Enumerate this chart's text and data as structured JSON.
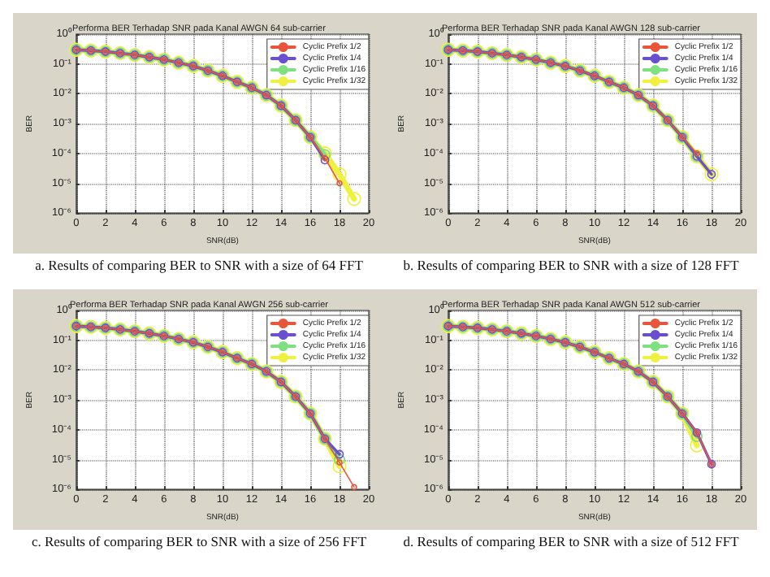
{
  "chart_data": [
    {
      "type": "line",
      "title": "Performa BER Terhadap SNR pada Kanal AWGN 64 sub-carrier",
      "xlabel": "SNR(dB)",
      "ylabel": "BER",
      "annotations": [
        "a. Results of comparing BER to SNR with a size of 64 FFT"
      ],
      "log": "y",
      "grid": true,
      "legend": "top right",
      "marker": "circle",
      "xlim": [
        0,
        20
      ],
      "xticks": [
        0,
        2,
        4,
        6,
        8,
        10,
        12,
        14,
        16,
        18,
        20
      ],
      "ylim": [
        1e-06,
        1
      ],
      "yticks": [
        {
          "value": 1,
          "label": "10⁰"
        },
        {
          "value": 0.1,
          "label": "10⁻¹"
        },
        {
          "value": 0.01,
          "label": "10⁻²"
        },
        {
          "value": 0.001,
          "label": "10⁻³"
        },
        {
          "value": 0.0001,
          "label": "10⁻⁴"
        },
        {
          "value": 1e-05,
          "label": "10⁻⁵"
        },
        {
          "value": 1e-06,
          "label": "10⁻⁶"
        }
      ],
      "series": [
        {
          "name": "Cyclic Prefix 1/2",
          "color": "#e8553a",
          "x": [
            0,
            1,
            2,
            3,
            4,
            5,
            6,
            7,
            8,
            9,
            10,
            11,
            12,
            13,
            14,
            15,
            16,
            17,
            18
          ],
          "values": [
            0.3,
            0.28,
            0.26,
            0.23,
            0.2,
            0.17,
            0.14,
            0.11,
            0.085,
            0.06,
            0.04,
            0.025,
            0.016,
            0.009,
            0.004,
            0.0013,
            0.00035,
            7e-05,
            1e-05
          ]
        },
        {
          "name": "Cyclic Prefix 1/4",
          "color": "#6a4fd0",
          "x": [
            0,
            1,
            2,
            3,
            4,
            5,
            6,
            7,
            8,
            9,
            10,
            11,
            12,
            13,
            14,
            15,
            16,
            17
          ],
          "values": [
            0.3,
            0.28,
            0.26,
            0.23,
            0.2,
            0.17,
            0.14,
            0.11,
            0.085,
            0.06,
            0.04,
            0.025,
            0.016,
            0.009,
            0.004,
            0.0013,
            0.00035,
            6e-05
          ]
        },
        {
          "name": "Cyclic Prefix 1/16",
          "color": "#7fe07f",
          "x": [
            0,
            1,
            2,
            3,
            4,
            5,
            6,
            7,
            8,
            9,
            10,
            11,
            12,
            13,
            14,
            15,
            16,
            17
          ],
          "values": [
            0.3,
            0.28,
            0.26,
            0.23,
            0.2,
            0.17,
            0.14,
            0.11,
            0.085,
            0.06,
            0.04,
            0.025,
            0.016,
            0.009,
            0.004,
            0.0013,
            0.00035,
            9e-05
          ]
        },
        {
          "name": "Cyclic Prefix 1/32",
          "color": "#f0f040",
          "x": [
            0,
            1,
            2,
            3,
            4,
            5,
            6,
            7,
            8,
            9,
            10,
            11,
            12,
            13,
            14,
            15,
            16,
            17,
            18,
            19
          ],
          "values": [
            0.3,
            0.28,
            0.26,
            0.23,
            0.2,
            0.17,
            0.14,
            0.11,
            0.085,
            0.06,
            0.04,
            0.025,
            0.016,
            0.009,
            0.004,
            0.0013,
            0.00035,
            0.0001,
            2e-05,
            3e-06
          ]
        }
      ]
    },
    {
      "type": "line",
      "title": "Performa BER Terhadap SNR pada Kanal AWGN 128 sub-carrier",
      "xlabel": "SNR(dB)",
      "ylabel": "BER",
      "annotations": [
        "b. Results of comparing BER to SNR with a size of 128 FFT"
      ],
      "log": "y",
      "grid": true,
      "legend": "top right",
      "marker": "circle",
      "xlim": [
        0,
        20
      ],
      "xticks": [
        0,
        2,
        4,
        6,
        8,
        10,
        12,
        14,
        16,
        18,
        20
      ],
      "ylim": [
        1e-06,
        1
      ],
      "yticks": [
        {
          "value": 1,
          "label": "10⁰"
        },
        {
          "value": 0.1,
          "label": "10⁻¹"
        },
        {
          "value": 0.01,
          "label": "10⁻²"
        },
        {
          "value": 0.001,
          "label": "10⁻³"
        },
        {
          "value": 0.0001,
          "label": "10⁻⁴"
        },
        {
          "value": 1e-05,
          "label": "10⁻⁵"
        },
        {
          "value": 1e-06,
          "label": "10⁻⁶"
        }
      ],
      "series": [
        {
          "name": "Cyclic Prefix 1/2",
          "color": "#e8553a",
          "x": [
            0,
            1,
            2,
            3,
            4,
            5,
            6,
            7,
            8,
            9,
            10,
            11,
            12,
            13,
            14,
            15,
            16,
            17
          ],
          "values": [
            0.3,
            0.28,
            0.26,
            0.23,
            0.2,
            0.17,
            0.14,
            0.11,
            0.085,
            0.06,
            0.04,
            0.025,
            0.016,
            0.009,
            0.004,
            0.0013,
            0.00035,
            0.0001
          ]
        },
        {
          "name": "Cyclic Prefix 1/4",
          "color": "#6a4fd0",
          "x": [
            0,
            1,
            2,
            3,
            4,
            5,
            6,
            7,
            8,
            9,
            10,
            11,
            12,
            13,
            14,
            15,
            16,
            17,
            18
          ],
          "values": [
            0.3,
            0.28,
            0.26,
            0.23,
            0.2,
            0.17,
            0.14,
            0.11,
            0.085,
            0.06,
            0.04,
            0.025,
            0.016,
            0.009,
            0.004,
            0.0013,
            0.00035,
            8e-05,
            2e-05
          ]
        },
        {
          "name": "Cyclic Prefix 1/16",
          "color": "#7fe07f",
          "x": [
            0,
            1,
            2,
            3,
            4,
            5,
            6,
            7,
            8,
            9,
            10,
            11,
            12,
            13,
            14,
            15,
            16,
            17
          ],
          "values": [
            0.3,
            0.28,
            0.26,
            0.23,
            0.2,
            0.17,
            0.14,
            0.11,
            0.085,
            0.06,
            0.04,
            0.025,
            0.016,
            0.009,
            0.004,
            0.0013,
            0.00035,
            8e-05
          ]
        },
        {
          "name": "Cyclic Prefix 1/32",
          "color": "#f0f040",
          "x": [
            0,
            1,
            2,
            3,
            4,
            5,
            6,
            7,
            8,
            9,
            10,
            11,
            12,
            13,
            14,
            15,
            16,
            17,
            18
          ],
          "values": [
            0.3,
            0.28,
            0.26,
            0.23,
            0.2,
            0.17,
            0.14,
            0.11,
            0.085,
            0.06,
            0.04,
            0.025,
            0.016,
            0.009,
            0.004,
            0.0013,
            0.00035,
            8e-05,
            2e-05
          ]
        }
      ]
    },
    {
      "type": "line",
      "title": "Performa BER Terhadap SNR pada Kanal AWGN 256 sub-carrier",
      "xlabel": "SNR(dB)",
      "ylabel": "BER",
      "annotations": [
        "c. Results of comparing BER to SNR with a size of 256 FFT"
      ],
      "log": "y",
      "grid": true,
      "legend": "top right",
      "marker": "circle",
      "xlim": [
        0,
        20
      ],
      "xticks": [
        0,
        2,
        4,
        6,
        8,
        10,
        12,
        14,
        16,
        18,
        20
      ],
      "ylim": [
        1e-06,
        1
      ],
      "yticks": [
        {
          "value": 1,
          "label": "10⁰"
        },
        {
          "value": 0.1,
          "label": "10⁻¹"
        },
        {
          "value": 0.01,
          "label": "10⁻²"
        },
        {
          "value": 0.001,
          "label": "10⁻³"
        },
        {
          "value": 0.0001,
          "label": "10⁻⁴"
        },
        {
          "value": 1e-05,
          "label": "10⁻⁵"
        },
        {
          "value": 1e-06,
          "label": "10⁻⁶"
        }
      ],
      "series": [
        {
          "name": "Cyclic Prefix 1/2",
          "color": "#e8553a",
          "x": [
            0,
            1,
            2,
            3,
            4,
            5,
            6,
            7,
            8,
            9,
            10,
            11,
            12,
            13,
            14,
            15,
            16,
            17,
            18,
            19
          ],
          "values": [
            0.3,
            0.28,
            0.26,
            0.23,
            0.2,
            0.17,
            0.14,
            0.11,
            0.085,
            0.06,
            0.04,
            0.025,
            0.016,
            0.009,
            0.004,
            0.0013,
            0.00035,
            5e-05,
            8e-06,
            1.2e-06
          ]
        },
        {
          "name": "Cyclic Prefix 1/4",
          "color": "#6a4fd0",
          "x": [
            0,
            1,
            2,
            3,
            4,
            5,
            6,
            7,
            8,
            9,
            10,
            11,
            12,
            13,
            14,
            15,
            16,
            17,
            18
          ],
          "values": [
            0.3,
            0.28,
            0.26,
            0.23,
            0.2,
            0.17,
            0.14,
            0.11,
            0.085,
            0.06,
            0.04,
            0.025,
            0.016,
            0.009,
            0.004,
            0.0013,
            0.00035,
            5e-05,
            1.5e-05
          ]
        },
        {
          "name": "Cyclic Prefix 1/16",
          "color": "#7fe07f",
          "x": [
            0,
            1,
            2,
            3,
            4,
            5,
            6,
            7,
            8,
            9,
            10,
            11,
            12,
            13,
            14,
            15,
            16,
            17,
            18
          ],
          "values": [
            0.3,
            0.28,
            0.26,
            0.23,
            0.2,
            0.17,
            0.14,
            0.11,
            0.085,
            0.06,
            0.04,
            0.025,
            0.016,
            0.009,
            0.004,
            0.0013,
            0.00035,
            5e-05,
            1e-05
          ]
        },
        {
          "name": "Cyclic Prefix 1/32",
          "color": "#f0f040",
          "x": [
            0,
            1,
            2,
            3,
            4,
            5,
            6,
            7,
            8,
            9,
            10,
            11,
            12,
            13,
            14,
            15,
            16,
            17,
            18
          ],
          "values": [
            0.3,
            0.28,
            0.26,
            0.23,
            0.2,
            0.17,
            0.14,
            0.11,
            0.085,
            0.06,
            0.04,
            0.025,
            0.016,
            0.009,
            0.004,
            0.0013,
            0.00035,
            5e-05,
            6e-06
          ]
        }
      ]
    },
    {
      "type": "line",
      "title": "Performa BER Terhadap SNR pada Kanal AWGN 512 sub-carrier",
      "xlabel": "SNR(dB)",
      "ylabel": "BER",
      "annotations": [
        "d. Results of comparing BER to SNR with a size of 512 FFT"
      ],
      "log": "y",
      "grid": true,
      "legend": "top right",
      "marker": "circle",
      "xlim": [
        0,
        20
      ],
      "xticks": [
        0,
        2,
        4,
        6,
        8,
        10,
        12,
        14,
        16,
        18,
        20
      ],
      "ylim": [
        1e-06,
        1
      ],
      "yticks": [
        {
          "value": 1,
          "label": "10⁰"
        },
        {
          "value": 0.1,
          "label": "10⁻¹"
        },
        {
          "value": 0.01,
          "label": "10⁻²"
        },
        {
          "value": 0.001,
          "label": "10⁻³"
        },
        {
          "value": 0.0001,
          "label": "10⁻⁴"
        },
        {
          "value": 1e-05,
          "label": "10⁻⁵"
        },
        {
          "value": 1e-06,
          "label": "10⁻⁶"
        }
      ],
      "series": [
        {
          "name": "Cyclic Prefix 1/2",
          "color": "#e8553a",
          "x": [
            0,
            1,
            2,
            3,
            4,
            5,
            6,
            7,
            8,
            9,
            10,
            11,
            12,
            13,
            14,
            15,
            16,
            17,
            18
          ],
          "values": [
            0.3,
            0.28,
            0.26,
            0.23,
            0.2,
            0.17,
            0.14,
            0.11,
            0.085,
            0.06,
            0.04,
            0.025,
            0.016,
            0.009,
            0.004,
            0.0013,
            0.00035,
            8e-05,
            7e-06
          ]
        },
        {
          "name": "Cyclic Prefix 1/4",
          "color": "#6a4fd0",
          "x": [
            0,
            1,
            2,
            3,
            4,
            5,
            6,
            7,
            8,
            9,
            10,
            11,
            12,
            13,
            14,
            15,
            16,
            17,
            18
          ],
          "values": [
            0.3,
            0.28,
            0.26,
            0.23,
            0.2,
            0.17,
            0.14,
            0.11,
            0.085,
            0.06,
            0.04,
            0.025,
            0.016,
            0.009,
            0.004,
            0.0013,
            0.00035,
            8e-05,
            7e-06
          ]
        },
        {
          "name": "Cyclic Prefix 1/16",
          "color": "#7fe07f",
          "x": [
            0,
            1,
            2,
            3,
            4,
            5,
            6,
            7,
            8,
            9,
            10,
            11,
            12,
            13,
            14,
            15,
            16,
            17
          ],
          "values": [
            0.3,
            0.28,
            0.26,
            0.23,
            0.2,
            0.17,
            0.14,
            0.11,
            0.085,
            0.06,
            0.04,
            0.025,
            0.016,
            0.009,
            0.004,
            0.0013,
            0.00035,
            6e-05
          ]
        },
        {
          "name": "Cyclic Prefix 1/32",
          "color": "#f0f040",
          "x": [
            0,
            1,
            2,
            3,
            4,
            5,
            6,
            7,
            8,
            9,
            10,
            11,
            12,
            13,
            14,
            15,
            16,
            17
          ],
          "values": [
            0.3,
            0.28,
            0.26,
            0.23,
            0.2,
            0.17,
            0.14,
            0.11,
            0.085,
            0.06,
            0.04,
            0.025,
            0.016,
            0.009,
            0.004,
            0.0013,
            0.00035,
            3e-05
          ]
        }
      ]
    }
  ]
}
